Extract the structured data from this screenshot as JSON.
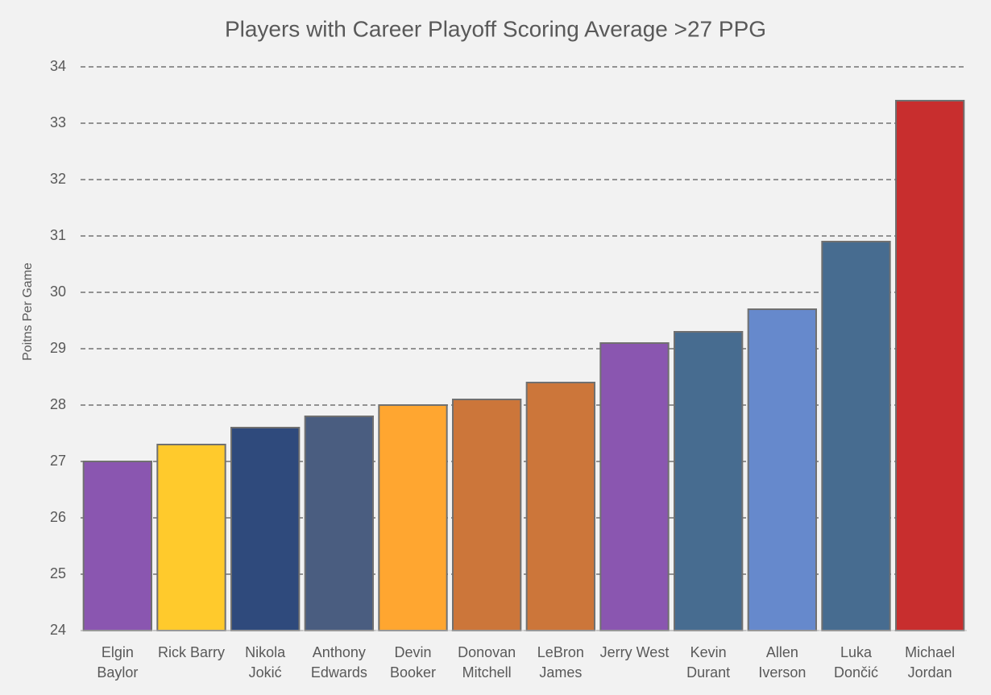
{
  "chart_data": {
    "type": "bar",
    "title": "Players with Career Playoff Scoring Average >27 PPG",
    "y_label": "Poitns Per Game",
    "categories": [
      "Elgin Baylor",
      "Rick Barry",
      "Nikola Jokić",
      "Anthony Edwards",
      "Devin Booker",
      "Donovan Mitchell",
      "LeBron James",
      "Jerry West",
      "Kevin Durant",
      "Allen Iverson",
      "Luka Dončić",
      "Michael Jordan"
    ],
    "values": [
      27.0,
      27.3,
      27.6,
      27.8,
      28.0,
      28.1,
      28.4,
      29.1,
      29.3,
      29.7,
      30.9,
      33.4
    ],
    "colors": [
      "#8a56b0",
      "#ffca2c",
      "#2f4a7c",
      "#4a5d80",
      "#ffa630",
      "#cc763a",
      "#cc763a",
      "#8a56b0",
      "#476c90",
      "#6689cc",
      "#476c90",
      "#c82e2e"
    ],
    "ylim": [
      24,
      34
    ],
    "yticks": [
      24,
      25,
      26,
      27,
      28,
      29,
      30,
      31,
      32,
      33,
      34
    ],
    "grid": true
  }
}
